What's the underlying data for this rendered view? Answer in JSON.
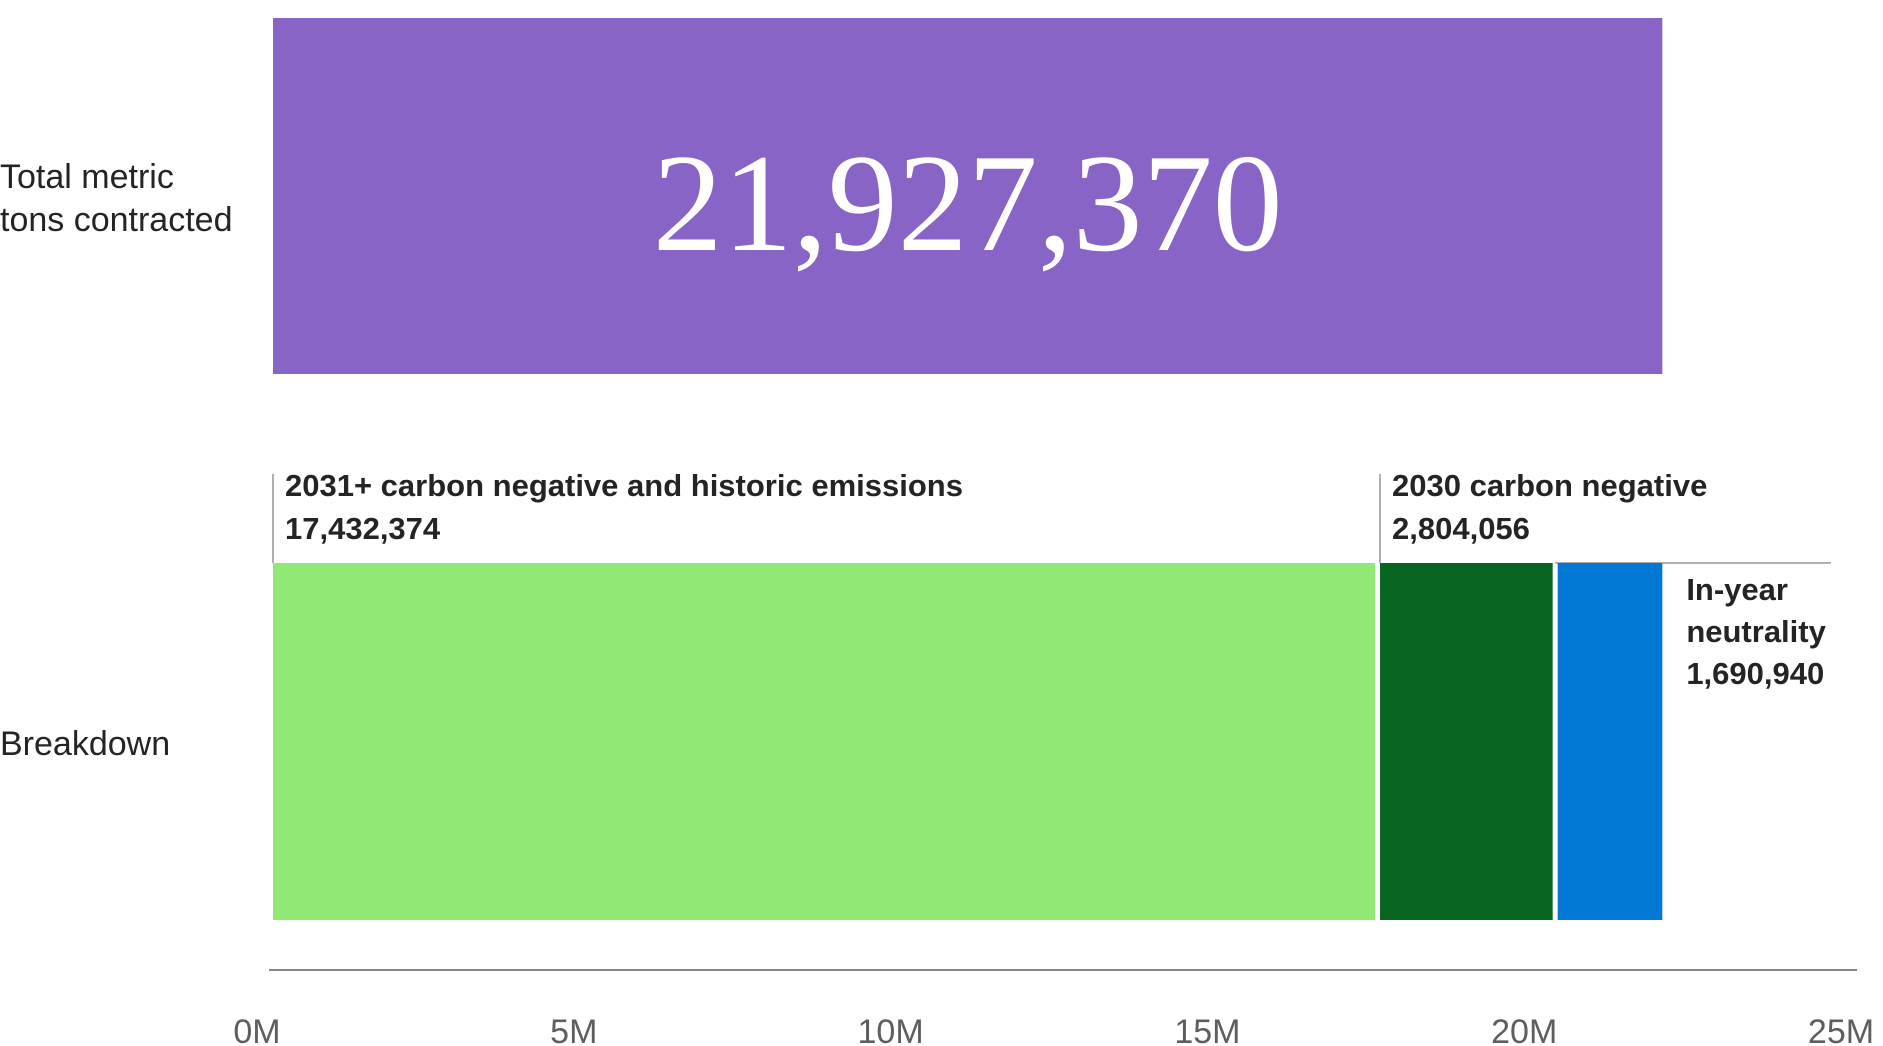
{
  "chart_data": {
    "type": "bar",
    "orientation": "horizontal",
    "stacked": true,
    "categories": [
      "Total metric tons contracted",
      "Breakdown"
    ],
    "category_labels": [
      [
        "Total metric",
        "tons contracted"
      ],
      [
        "Breakdown"
      ]
    ],
    "total": {
      "value": 21927370,
      "label": "21,927,370",
      "color": "#8764c6"
    },
    "series": [
      {
        "name": "2031+ carbon negative and historic emissions",
        "value": 17432374,
        "label": "17,432,374",
        "color": "#90e974"
      },
      {
        "name": "2030 carbon negative",
        "value": 2804056,
        "label": "2,804,056",
        "color": "#076521"
      },
      {
        "name": "In-year neutrality",
        "name_lines": [
          "In-year",
          "neutrality"
        ],
        "value": 1690940,
        "label": "1,690,940",
        "color": "#0078d4"
      }
    ],
    "xlim": [
      0,
      25000000
    ],
    "xticks": [
      "0M",
      "5M",
      "10M",
      "15M",
      "20M",
      "25M"
    ],
    "grid": false,
    "legend": "none"
  }
}
